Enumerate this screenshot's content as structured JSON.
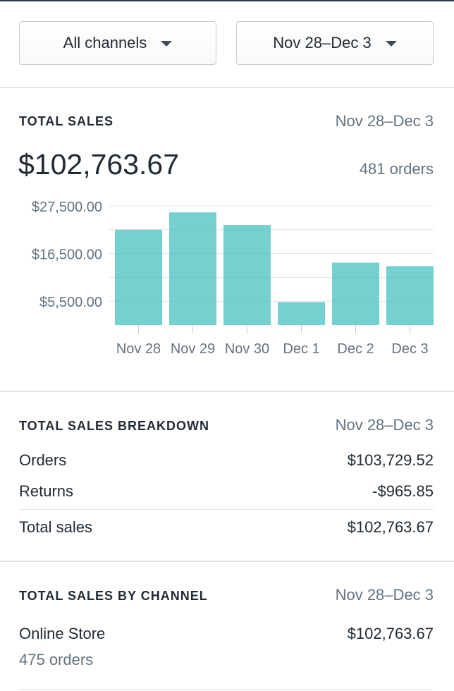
{
  "filters": {
    "channel": "All channels",
    "date_range": "Nov 28–Dec 3"
  },
  "total_sales": {
    "title": "TOTAL SALES",
    "date_range": "Nov 28–Dec 3",
    "amount": "$102,763.67",
    "orders": "481 orders"
  },
  "chart_data": {
    "type": "bar",
    "categories": [
      "Nov 28",
      "Nov 29",
      "Nov 30",
      "Dec 1",
      "Dec 2",
      "Dec 3"
    ],
    "values": [
      22000,
      26000,
      23100,
      5300,
      14400,
      13600
    ],
    "y_ticks": [
      "$5,500.00",
      "$16,500.00",
      "$27,500.00"
    ],
    "y_tick_values": [
      5500,
      16500,
      27500
    ],
    "ylim": [
      0,
      27500
    ],
    "grid": true,
    "bar_color": "#47c1bf"
  },
  "breakdown": {
    "title": "TOTAL SALES BREAKDOWN",
    "date_range": "Nov 28–Dec 3",
    "rows": [
      {
        "label": "Orders",
        "value": "$103,729.52"
      },
      {
        "label": "Returns",
        "value": "-$965.85"
      },
      {
        "label": "Total sales",
        "value": "$102,763.67"
      }
    ]
  },
  "by_channel": {
    "title": "TOTAL SALES BY CHANNEL",
    "date_range": "Nov 28–Dec 3",
    "channels": [
      {
        "name": "Online Store",
        "value": "$102,763.67",
        "orders": "475 orders"
      }
    ]
  }
}
